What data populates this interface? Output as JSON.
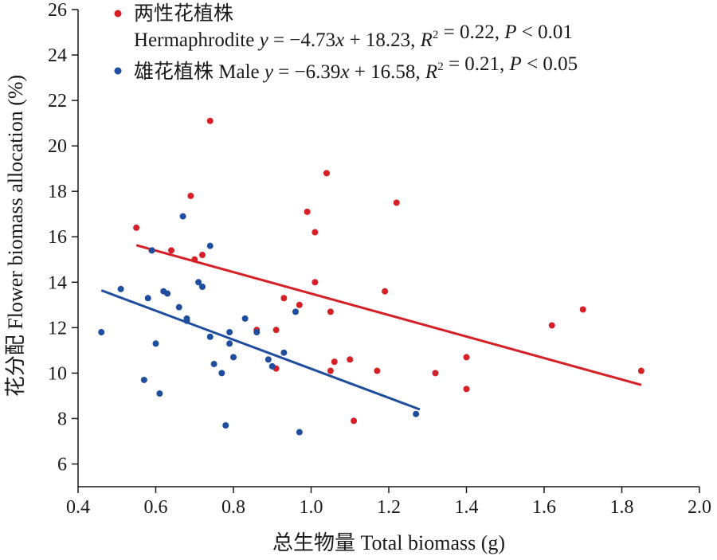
{
  "chart_data": {
    "type": "scatter",
    "xlabel": "总生物量 Total biomass (g)",
    "ylabel": "花分配 Flower biomass allocation (%)",
    "xlim": [
      0.4,
      2.0
    ],
    "ylim": [
      5,
      26
    ],
    "xticks": [
      0.4,
      0.6,
      0.8,
      1.0,
      1.2,
      1.4,
      1.6,
      1.8,
      2.0
    ],
    "xtick_labels": [
      "0.4",
      "0.6",
      "0.8",
      "1.0",
      "1.2",
      "1.4",
      "1.6",
      "1.8",
      "2.0"
    ],
    "yticks": [
      6,
      8,
      10,
      12,
      14,
      16,
      18,
      20,
      22,
      24,
      26
    ],
    "ytick_labels": [
      "6",
      "8",
      "10",
      "12",
      "14",
      "16",
      "18",
      "20",
      "22",
      "24",
      "26"
    ],
    "grid": false,
    "legend_position": "top-left",
    "series": [
      {
        "name": "两性花植株",
        "name_en": "Hermaphrodite",
        "equation": "y = −4.73x + 18.23, R² = 0.22, P < 0.01",
        "color": "#d62027",
        "fit": {
          "slope": -4.73,
          "intercept": 18.23,
          "x_range": [
            0.55,
            1.85
          ]
        },
        "points": [
          [
            0.55,
            16.4
          ],
          [
            0.59,
            15.4
          ],
          [
            0.64,
            15.4
          ],
          [
            0.69,
            17.8
          ],
          [
            0.7,
            15.0
          ],
          [
            0.72,
            15.2
          ],
          [
            0.74,
            21.1
          ],
          [
            0.86,
            11.9
          ],
          [
            0.91,
            10.2
          ],
          [
            0.91,
            11.9
          ],
          [
            0.93,
            13.3
          ],
          [
            0.97,
            13.0
          ],
          [
            0.99,
            17.1
          ],
          [
            1.01,
            16.2
          ],
          [
            1.01,
            14.0
          ],
          [
            1.04,
            18.8
          ],
          [
            1.05,
            12.7
          ],
          [
            1.05,
            10.1
          ],
          [
            1.06,
            10.5
          ],
          [
            1.1,
            10.6
          ],
          [
            1.11,
            7.9
          ],
          [
            1.17,
            10.1
          ],
          [
            1.19,
            13.6
          ],
          [
            1.22,
            17.5
          ],
          [
            1.32,
            10.0
          ],
          [
            1.4,
            10.7
          ],
          [
            1.4,
            9.3
          ],
          [
            1.62,
            12.1
          ],
          [
            1.7,
            12.8
          ],
          [
            1.85,
            10.1
          ]
        ]
      },
      {
        "name": "雄花植株 Male",
        "equation": "y = −6.39x + 16.58, R² = 0.21, P < 0.05",
        "color": "#1f4e9e",
        "fit": {
          "slope": -6.39,
          "intercept": 16.58,
          "x_range": [
            0.46,
            1.28
          ]
        },
        "points": [
          [
            0.46,
            11.8
          ],
          [
            0.51,
            13.7
          ],
          [
            0.57,
            9.7
          ],
          [
            0.58,
            13.3
          ],
          [
            0.59,
            15.4
          ],
          [
            0.6,
            11.3
          ],
          [
            0.61,
            9.1
          ],
          [
            0.62,
            13.6
          ],
          [
            0.63,
            13.5
          ],
          [
            0.66,
            12.9
          ],
          [
            0.67,
            16.9
          ],
          [
            0.68,
            12.3
          ],
          [
            0.68,
            12.4
          ],
          [
            0.71,
            14.0
          ],
          [
            0.72,
            13.8
          ],
          [
            0.74,
            15.6
          ],
          [
            0.74,
            11.6
          ],
          [
            0.75,
            10.4
          ],
          [
            0.77,
            10.0
          ],
          [
            0.78,
            7.7
          ],
          [
            0.79,
            11.3
          ],
          [
            0.79,
            11.8
          ],
          [
            0.8,
            10.7
          ],
          [
            0.83,
            12.4
          ],
          [
            0.86,
            11.8
          ],
          [
            0.89,
            10.6
          ],
          [
            0.9,
            10.3
          ],
          [
            0.93,
            10.9
          ],
          [
            0.96,
            12.7
          ],
          [
            0.97,
            7.4
          ],
          [
            1.27,
            8.2
          ]
        ]
      }
    ]
  },
  "legend": {
    "items": [
      {
        "line1": "两性花植株",
        "line2": "Hermaphrodite y = −4.73x + 18.23, R² = 0.22, P < 0.01",
        "color": "#d62027",
        "segments": [
          {
            "t": "两性花植株",
            "style": "normal",
            "row": 1
          },
          {
            "t": "Hermaphrodite ",
            "style": "normal",
            "row": 2
          },
          {
            "t": "y",
            "style": "italic",
            "row": 2
          },
          {
            "t": " = −4.73",
            "style": "normal",
            "row": 2
          },
          {
            "t": "x",
            "style": "italic",
            "row": 2
          },
          {
            "t": " + 18.23, ",
            "style": "normal",
            "row": 2
          },
          {
            "t": "R",
            "style": "italic",
            "row": 2
          },
          {
            "t": "2",
            "style": "sup",
            "row": 2
          },
          {
            "t": " = 0.22, ",
            "style": "normal",
            "row": 2
          },
          {
            "t": "P",
            "style": "italic",
            "row": 2
          },
          {
            "t": " < 0.01",
            "style": "normal",
            "row": 2
          }
        ]
      },
      {
        "line1": "雄花植株 Male y = −6.39x + 16.58, R² = 0.21, P < 0.05",
        "color": "#1f4e9e",
        "segments": [
          {
            "t": "雄花植株 Male ",
            "style": "normal",
            "row": 1
          },
          {
            "t": "y",
            "style": "italic",
            "row": 1
          },
          {
            "t": " = −6.39",
            "style": "normal",
            "row": 1
          },
          {
            "t": "x",
            "style": "italic",
            "row": 1
          },
          {
            "t": " + 16.58, ",
            "style": "normal",
            "row": 1
          },
          {
            "t": "R",
            "style": "italic",
            "row": 1
          },
          {
            "t": "2",
            "style": "sup",
            "row": 1
          },
          {
            "t": " = 0.21, ",
            "style": "normal",
            "row": 1
          },
          {
            "t": "P",
            "style": "italic",
            "row": 1
          },
          {
            "t": " < 0.05",
            "style": "normal",
            "row": 1
          }
        ]
      }
    ]
  }
}
